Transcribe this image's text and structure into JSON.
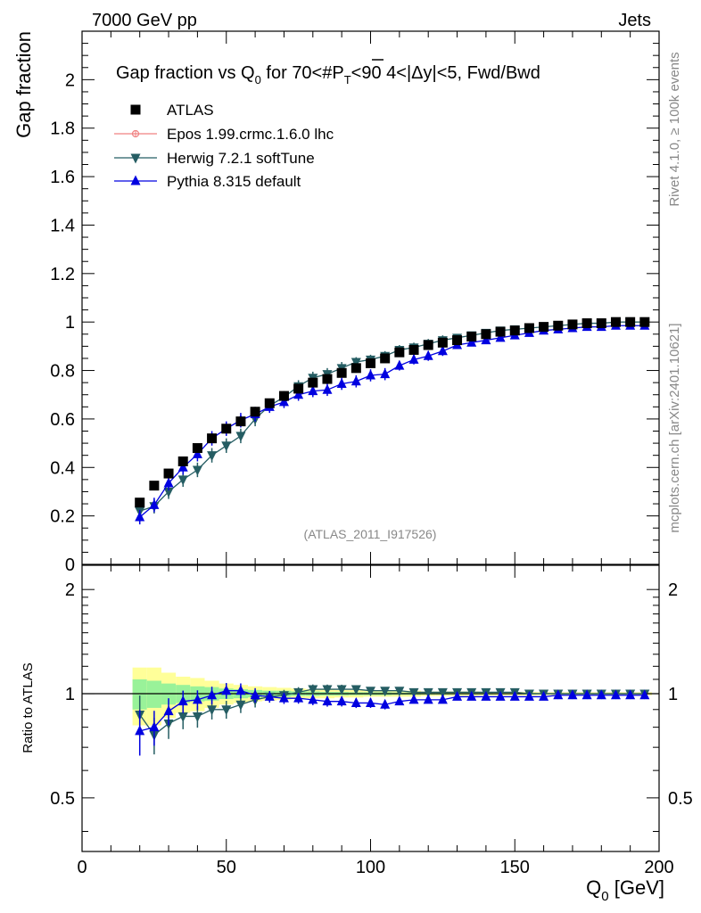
{
  "header": {
    "left": "7000 GeV pp",
    "right": "Jets"
  },
  "side": {
    "rivet": "Rivet 4.1.0, ≥ 100k events",
    "mcplots": "mcplots.cern.ch [arXiv:2401.10621]"
  },
  "chart_data": {
    "type": "scatter",
    "title": {
      "main": "Gap fraction vs Q",
      "sub0": "0",
      "for": " for 70<#",
      "pbar": "P",
      "subT": "T",
      "rest": "<90  4<|Δy|<5, Fwd/Bwd"
    },
    "analysis_label": "(ATLAS_2011_I917526)",
    "xlabel": "Q",
    "xlabel_sub": "0",
    "xlabel_unit": " [GeV]",
    "ylabel": "Gap fraction",
    "ratio_ylabel": "Ratio to ATLAS",
    "xlim": [
      0,
      200
    ],
    "ylim": [
      0,
      2.2
    ],
    "ratio_ylim": [
      0.35,
      2.35
    ],
    "x_ticks": [
      "0",
      "50",
      "100",
      "150",
      "200"
    ],
    "x_tick_values": [
      0,
      50,
      100,
      150,
      200
    ],
    "y_ticks": [
      "0",
      "0.2",
      "0.4",
      "0.6",
      "0.8",
      "1",
      "1.2",
      "1.4",
      "1.6",
      "1.8",
      "2"
    ],
    "y_tick_values": [
      0,
      0.2,
      0.4,
      0.6,
      0.8,
      1,
      1.2,
      1.4,
      1.6,
      1.8,
      2
    ],
    "ratio_ticks": [
      "0.5",
      "1",
      "2"
    ],
    "ratio_tick_values": [
      0.5,
      1,
      2
    ],
    "x": [
      20,
      25,
      30,
      35,
      40,
      45,
      50,
      55,
      60,
      65,
      70,
      75,
      80,
      85,
      90,
      95,
      100,
      105,
      110,
      115,
      120,
      125,
      130,
      135,
      140,
      145,
      150,
      155,
      160,
      165,
      170,
      175,
      180,
      185,
      190,
      195
    ],
    "series": [
      {
        "name": "ATLAS",
        "color": "#000000",
        "marker": "square",
        "values": [
          0.255,
          0.325,
          0.375,
          0.425,
          0.48,
          0.52,
          0.56,
          0.59,
          0.63,
          0.665,
          0.695,
          0.725,
          0.75,
          0.765,
          0.79,
          0.81,
          0.83,
          0.85,
          0.875,
          0.885,
          0.905,
          0.915,
          0.925,
          0.94,
          0.95,
          0.96,
          0.965,
          0.975,
          0.98,
          0.985,
          0.99,
          0.995,
          0.995,
          1.0,
          1.0,
          1.0
        ],
        "err": [
          0.02,
          0.02,
          0.02,
          0.02,
          0.02,
          0.02,
          0.02,
          0.02,
          0.02,
          0.02,
          0.02,
          0.02,
          0.02,
          0.02,
          0.02,
          0.02,
          0.02,
          0.02,
          0.02,
          0.02,
          0.015,
          0.015,
          0.015,
          0.015,
          0.015,
          0.015,
          0.01,
          0.01,
          0.01,
          0.01,
          0.01,
          0.01,
          0.01,
          0.01,
          0.01,
          0.01
        ]
      },
      {
        "name": "Epos 1.99.crmc.1.6.0 lhc",
        "color": "#f08080",
        "marker": "open-cross",
        "values": []
      },
      {
        "name": "Herwig 7.2.1 softTune",
        "color": "#255d63",
        "marker": "triangle-down",
        "values": [
          0.22,
          0.24,
          0.3,
          0.35,
          0.39,
          0.45,
          0.49,
          0.53,
          0.6,
          0.655,
          0.69,
          0.735,
          0.77,
          0.785,
          0.81,
          0.835,
          0.845,
          0.86,
          0.885,
          0.895,
          0.91,
          0.925,
          0.935,
          0.945,
          0.955,
          0.965,
          0.97,
          0.975,
          0.98,
          0.985,
          0.99,
          0.995,
          0.995,
          1.0,
          1.0,
          1.0
        ],
        "err": [
          0.03,
          0.03,
          0.03,
          0.03,
          0.03,
          0.03,
          0.03,
          0.03,
          0.03,
          0.025,
          0.025,
          0.025,
          0.025,
          0.025,
          0.025,
          0.02,
          0.02,
          0.02,
          0.02,
          0.02,
          0.02,
          0.02,
          0.015,
          0.015,
          0.015,
          0.015,
          0.01,
          0.01,
          0.01,
          0.01,
          0.01,
          0.01,
          0.01,
          0.01,
          0.01,
          0.01
        ],
        "ratio": [
          0.87,
          0.76,
          0.82,
          0.86,
          0.86,
          0.9,
          0.9,
          0.93,
          0.96,
          0.98,
          0.99,
          1.01,
          1.03,
          1.03,
          1.03,
          1.03,
          1.02,
          1.02,
          1.02,
          1.01,
          1.01,
          1.01,
          1.01,
          1.01,
          1.01,
          1.01,
          1.01,
          1.0,
          1.0,
          1.0,
          1.0,
          1.0,
          1.0,
          1.0,
          1.0,
          1.0
        ]
      },
      {
        "name": "Pythia 8.315 default",
        "color": "#0000e0",
        "marker": "triangle-up",
        "values": [
          0.195,
          0.245,
          0.335,
          0.4,
          0.455,
          0.52,
          0.56,
          0.595,
          0.62,
          0.65,
          0.67,
          0.7,
          0.715,
          0.72,
          0.745,
          0.755,
          0.78,
          0.785,
          0.82,
          0.845,
          0.86,
          0.88,
          0.905,
          0.915,
          0.925,
          0.935,
          0.945,
          0.955,
          0.965,
          0.97,
          0.975,
          0.98,
          0.98,
          0.985,
          0.985,
          0.985
        ],
        "err": [
          0.03,
          0.03,
          0.03,
          0.03,
          0.03,
          0.03,
          0.03,
          0.03,
          0.03,
          0.025,
          0.025,
          0.025,
          0.025,
          0.025,
          0.025,
          0.025,
          0.025,
          0.025,
          0.02,
          0.02,
          0.02,
          0.02,
          0.015,
          0.015,
          0.015,
          0.015,
          0.01,
          0.01,
          0.01,
          0.01,
          0.01,
          0.01,
          0.01,
          0.01,
          0.01,
          0.01
        ],
        "ratio": [
          0.78,
          0.8,
          0.89,
          0.95,
          0.96,
          0.99,
          1.02,
          1.02,
          0.99,
          0.98,
          0.97,
          0.97,
          0.96,
          0.95,
          0.95,
          0.94,
          0.94,
          0.93,
          0.95,
          0.96,
          0.96,
          0.96,
          0.98,
          0.98,
          0.98,
          0.98,
          0.98,
          0.98,
          0.98,
          0.99,
          0.99,
          0.99,
          0.99,
          0.99,
          0.99,
          0.99
        ]
      }
    ],
    "ratio_band": {
      "stat_half": [
        0.1,
        0.09,
        0.07,
        0.06,
        0.05,
        0.045,
        0.035,
        0.03,
        0.025,
        0.02,
        0.02,
        0.015,
        0.015,
        0.012,
        0.012,
        0.01,
        0.01,
        0.01,
        0.008,
        0.008,
        0.006,
        0.006,
        0.005,
        0.005,
        0.005,
        0.004,
        0.004,
        0.004,
        0.003,
        0.003,
        0.003,
        0.003,
        0.003,
        0.003,
        0.003,
        0.003
      ],
      "total_half": [
        0.19,
        0.19,
        0.15,
        0.12,
        0.11,
        0.09,
        0.07,
        0.06,
        0.05,
        0.045,
        0.04,
        0.035,
        0.03,
        0.03,
        0.025,
        0.025,
        0.02,
        0.02,
        0.02,
        0.02,
        0.015,
        0.015,
        0.015,
        0.015,
        0.012,
        0.012,
        0.012,
        0.012,
        0.01,
        0.01,
        0.01,
        0.01,
        0.01,
        0.01,
        0.01,
        0.01
      ]
    }
  }
}
